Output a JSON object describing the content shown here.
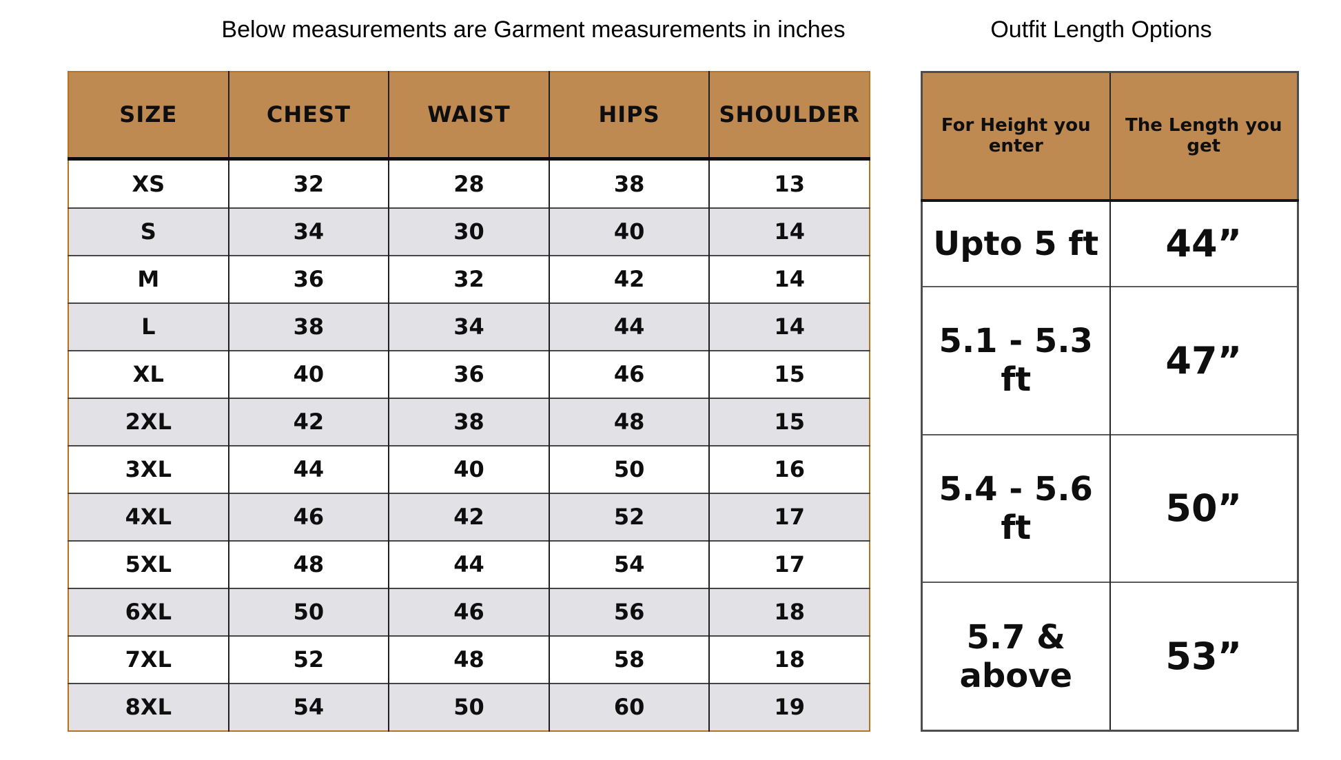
{
  "chart_data": [
    {
      "type": "table",
      "title": "Below measurements are Garment measurements in inches",
      "units": "inches",
      "columns": [
        "SIZE",
        "CHEST",
        "WAIST",
        "HIPS",
        "SHOULDER"
      ],
      "rows": [
        [
          "XS",
          "32",
          "28",
          "38",
          "13"
        ],
        [
          "S",
          "34",
          "30",
          "40",
          "14"
        ],
        [
          "M",
          "36",
          "32",
          "42",
          "14"
        ],
        [
          "L",
          "38",
          "34",
          "44",
          "14"
        ],
        [
          "XL",
          "40",
          "36",
          "46",
          "15"
        ],
        [
          "2XL",
          "42",
          "38",
          "48",
          "15"
        ],
        [
          "3XL",
          "44",
          "40",
          "50",
          "16"
        ],
        [
          "4XL",
          "46",
          "42",
          "52",
          "17"
        ],
        [
          "5XL",
          "48",
          "44",
          "54",
          "17"
        ],
        [
          "6XL",
          "50",
          "46",
          "56",
          "18"
        ],
        [
          "7XL",
          "52",
          "48",
          "58",
          "18"
        ],
        [
          "8XL",
          "54",
          "50",
          "60",
          "19"
        ]
      ],
      "layout_hints": {
        "row_striping": true,
        "grid": true
      }
    },
    {
      "type": "table",
      "title": "Outfit Length Options",
      "columns": [
        "For Height you enter",
        "The Length you get"
      ],
      "rows": [
        [
          "Upto 5 ft",
          "44”"
        ],
        [
          "5.1 - 5.3 ft",
          "47”"
        ],
        [
          "5.4 - 5.6 ft",
          "50”"
        ],
        [
          "5.7 & above",
          "53”"
        ]
      ],
      "layout_hints": {
        "row_striping": false,
        "grid": true
      }
    }
  ],
  "colors": {
    "header_bg": "#BF8A51",
    "alt_row_bg": "#E2E2E6",
    "left_outer_border": "#B4731D",
    "text": "#0E0E0E"
  }
}
